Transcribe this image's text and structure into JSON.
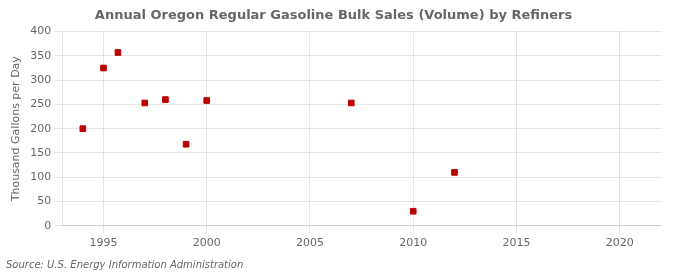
{
  "chart_data": {
    "type": "scatter",
    "title": "Annual Oregon Regular Gasoline Bulk Sales (Volume) by Refiners",
    "ylabel": "Thousand Gallons per Day",
    "annotation": "Source: U.S. Energy Information Administration",
    "x": [
      1994,
      1995,
      1995.7,
      1997,
      1998,
      1999,
      2000,
      2007,
      2010,
      2012
    ],
    "values": [
      200,
      325,
      357,
      253,
      260,
      168,
      258,
      253,
      30,
      110
    ],
    "color": "#bb0000",
    "marker": "square",
    "xlim": [
      1993,
      2022
    ],
    "ylim": [
      0,
      400
    ],
    "xticks": [
      1995,
      2000,
      2005,
      2010,
      2015,
      2020
    ],
    "yticks": [
      0,
      50,
      100,
      150,
      200,
      250,
      300,
      350,
      400
    ],
    "grid": true
  }
}
